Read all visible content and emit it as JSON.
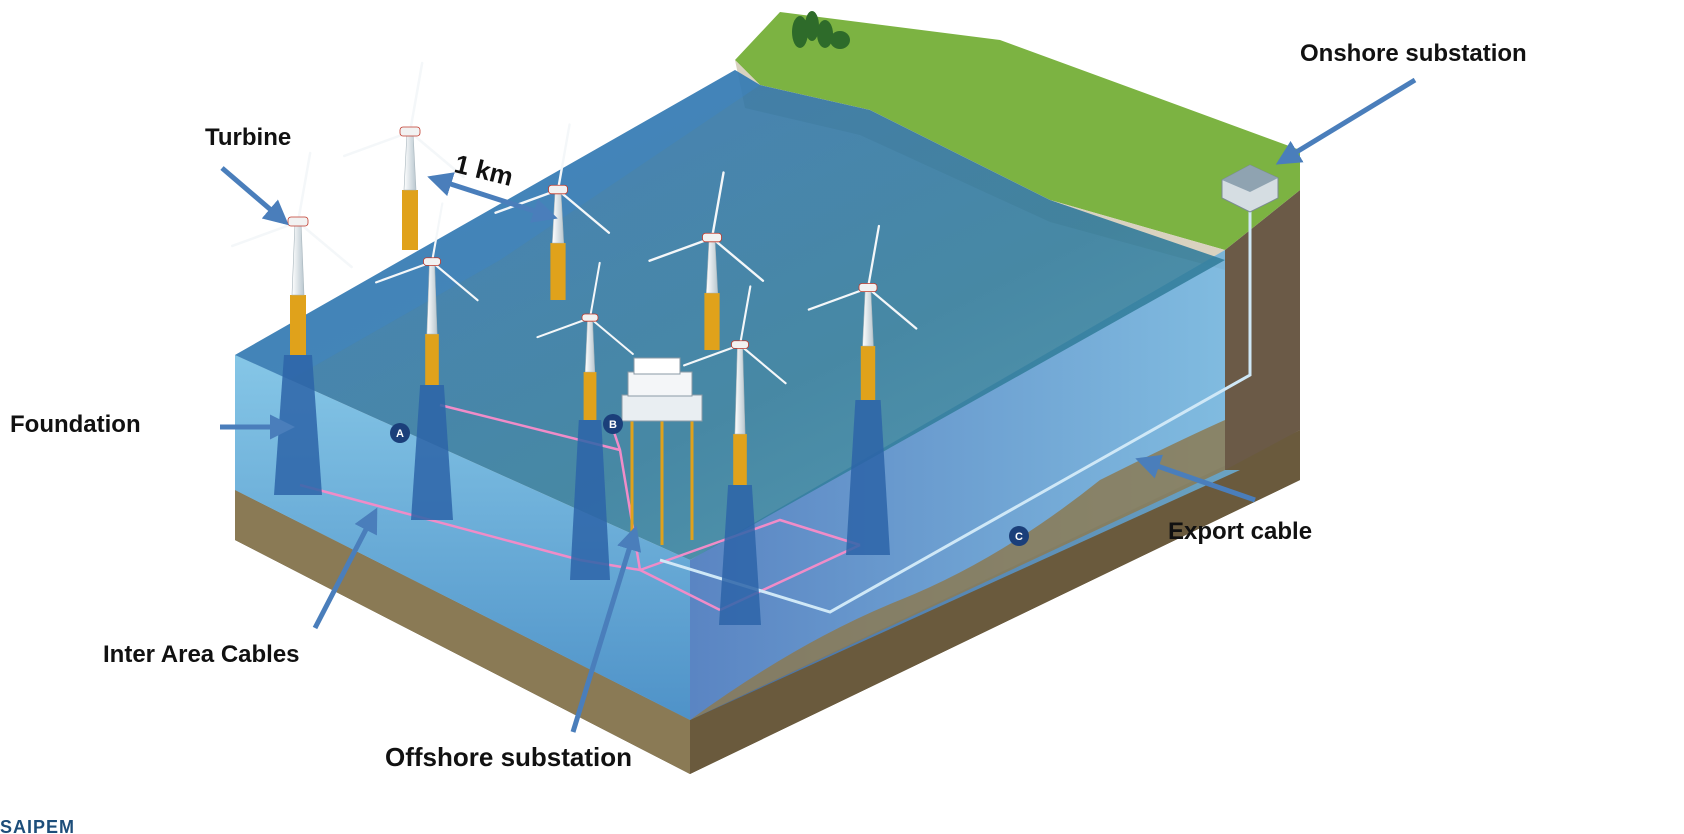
{
  "labels": {
    "turbine": "Turbine",
    "distance": "1 km",
    "foundation": "Foundation",
    "inter_area_cables": "Inter Area Cables",
    "offshore_substation": "Offshore substation",
    "onshore_substation": "Onshore substation",
    "export_cable": "Export cable"
  },
  "markers": {
    "a": "A",
    "b": "B",
    "c": "C"
  },
  "logo_text": "SAIPEM",
  "colors": {
    "arrow": "#4a7ebb",
    "sea_surface": "#3d7fb9",
    "sea_body": "#5aa6d6",
    "seabed": "#8a7a55",
    "grass": "#7cb342",
    "cliff": "#d9d2c0",
    "rock": "#6b5a47",
    "foundation_yellow": "#e0a21b",
    "cable_pink": "#f08cc8",
    "export_cable": "#cfe8f7",
    "marker": "#1b3f7a"
  }
}
